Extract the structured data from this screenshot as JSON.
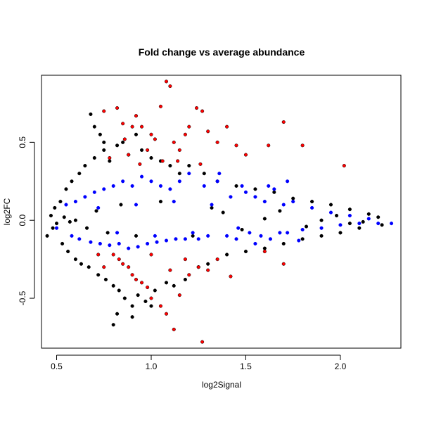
{
  "chart_data": {
    "type": "scatter",
    "title": "Fold change vs average abundance",
    "xlabel": "log2Signal",
    "ylabel": "log2FC",
    "xlim": [
      0.42,
      2.32
    ],
    "ylim": [
      -0.82,
      0.93
    ],
    "x_ticks": [
      0.5,
      1.0,
      1.5,
      2.0
    ],
    "x_tick_labels": [
      "0.5",
      "1.0",
      "1.5",
      "2.0"
    ],
    "y_ticks": [
      -0.5,
      0.0,
      0.5
    ],
    "y_tick_labels": [
      "-0.5",
      "0.0",
      "0.5"
    ],
    "grid": false,
    "legend": "none",
    "colors": {
      "black": "#000000",
      "blue": "#0000ff",
      "red": "#ff0000"
    },
    "series_black": [
      [
        0.45,
        -0.1
      ],
      [
        0.47,
        0.03
      ],
      [
        0.48,
        -0.05
      ],
      [
        0.49,
        0.08
      ],
      [
        0.5,
        -0.02
      ],
      [
        0.52,
        0.12
      ],
      [
        0.53,
        -0.15
      ],
      [
        0.55,
        0.2
      ],
      [
        0.56,
        -0.2
      ],
      [
        0.58,
        0.25
      ],
      [
        0.6,
        -0.25
      ],
      [
        0.62,
        0.3
      ],
      [
        0.63,
        -0.28
      ],
      [
        0.65,
        0.35
      ],
      [
        0.67,
        -0.3
      ],
      [
        0.7,
        0.4
      ],
      [
        0.72,
        -0.35
      ],
      [
        0.75,
        0.45
      ],
      [
        0.76,
        -0.38
      ],
      [
        0.78,
        0.38
      ],
      [
        0.8,
        -0.42
      ],
      [
        0.82,
        0.48
      ],
      [
        0.83,
        -0.45
      ],
      [
        0.85,
        0.5
      ],
      [
        0.86,
        -0.5
      ],
      [
        0.88,
        0.42
      ],
      [
        0.9,
        -0.55
      ],
      [
        0.92,
        0.55
      ],
      [
        0.93,
        -0.48
      ],
      [
        0.95,
        0.45
      ],
      [
        0.97,
        -0.52
      ],
      [
        1.0,
        0.4
      ],
      [
        1.02,
        -0.45
      ],
      [
        1.05,
        0.38
      ],
      [
        1.08,
        -0.4
      ],
      [
        1.1,
        0.35
      ],
      [
        1.12,
        -0.42
      ],
      [
        1.15,
        0.3
      ],
      [
        1.18,
        -0.38
      ],
      [
        1.2,
        0.35
      ],
      [
        1.25,
        -0.3
      ],
      [
        1.28,
        0.3
      ],
      [
        1.3,
        -0.28
      ],
      [
        1.35,
        0.25
      ],
      [
        1.4,
        -0.22
      ],
      [
        1.45,
        0.22
      ],
      [
        1.5,
        -0.2
      ],
      [
        1.55,
        0.2
      ],
      [
        1.6,
        -0.18
      ],
      [
        1.65,
        0.18
      ],
      [
        1.7,
        -0.15
      ],
      [
        1.75,
        0.14
      ],
      [
        1.8,
        -0.12
      ],
      [
        1.85,
        0.12
      ],
      [
        1.9,
        -0.1
      ],
      [
        1.95,
        0.1
      ],
      [
        2.0,
        -0.08
      ],
      [
        2.05,
        0.07
      ],
      [
        2.1,
        -0.05
      ],
      [
        2.15,
        0.04
      ],
      [
        2.2,
        0.02
      ],
      [
        2.22,
        -0.03
      ],
      [
        0.68,
        0.68
      ],
      [
        0.7,
        0.6
      ],
      [
        0.73,
        0.55
      ],
      [
        0.8,
        -0.67
      ],
      [
        0.82,
        -0.6
      ],
      [
        0.9,
        -0.62
      ],
      [
        1.0,
        -0.55
      ],
      [
        0.75,
        0.5
      ],
      [
        1.38,
        0.05
      ],
      [
        1.6,
        0.01
      ],
      [
        1.9,
        0.0
      ],
      [
        2.05,
        -0.02
      ],
      [
        0.6,
        0.0
      ],
      [
        0.66,
        -0.05
      ],
      [
        0.71,
        0.06
      ],
      [
        0.77,
        -0.08
      ],
      [
        0.84,
        0.1
      ],
      [
        0.92,
        -0.1
      ],
      [
        1.05,
        0.12
      ],
      [
        1.22,
        -0.1
      ],
      [
        1.32,
        0.08
      ],
      [
        1.48,
        -0.06
      ],
      [
        1.68,
        0.06
      ],
      [
        1.82,
        -0.04
      ],
      [
        1.98,
        0.03
      ],
      [
        2.12,
        -0.01
      ],
      [
        0.54,
        0.02
      ],
      [
        0.57,
        -0.01
      ]
    ],
    "series_blue": [
      [
        0.5,
        -0.05
      ],
      [
        0.55,
        0.1
      ],
      [
        0.58,
        -0.1
      ],
      [
        0.6,
        0.12
      ],
      [
        0.62,
        -0.12
      ],
      [
        0.65,
        0.15
      ],
      [
        0.68,
        -0.14
      ],
      [
        0.7,
        0.18
      ],
      [
        0.73,
        -0.15
      ],
      [
        0.75,
        0.2
      ],
      [
        0.78,
        -0.16
      ],
      [
        0.8,
        0.22
      ],
      [
        0.83,
        -0.15
      ],
      [
        0.85,
        0.25
      ],
      [
        0.88,
        -0.18
      ],
      [
        0.9,
        0.22
      ],
      [
        0.93,
        -0.17
      ],
      [
        0.95,
        0.28
      ],
      [
        0.98,
        -0.15
      ],
      [
        1.0,
        0.25
      ],
      [
        1.03,
        -0.14
      ],
      [
        1.05,
        0.22
      ],
      [
        1.08,
        -0.13
      ],
      [
        1.1,
        0.2
      ],
      [
        1.13,
        -0.12
      ],
      [
        1.15,
        0.25
      ],
      [
        1.18,
        -0.12
      ],
      [
        1.2,
        0.3
      ],
      [
        1.25,
        -0.12
      ],
      [
        1.28,
        0.22
      ],
      [
        1.3,
        -0.1
      ],
      [
        1.35,
        0.25
      ],
      [
        1.4,
        -0.1
      ],
      [
        1.42,
        0.15
      ],
      [
        1.45,
        -0.12
      ],
      [
        1.5,
        0.18
      ],
      [
        1.52,
        -0.08
      ],
      [
        1.55,
        0.15
      ],
      [
        1.58,
        -0.1
      ],
      [
        1.6,
        0.12
      ],
      [
        1.63,
        -0.12
      ],
      [
        1.65,
        0.2
      ],
      [
        1.68,
        -0.08
      ],
      [
        1.7,
        0.1
      ],
      [
        1.72,
        -0.08
      ],
      [
        1.75,
        0.12
      ],
      [
        1.8,
        -0.06
      ],
      [
        1.85,
        0.08
      ],
      [
        1.9,
        -0.05
      ],
      [
        1.95,
        0.05
      ],
      [
        2.0,
        -0.03
      ],
      [
        2.05,
        0.03
      ],
      [
        2.1,
        -0.02
      ],
      [
        2.15,
        0.01
      ],
      [
        2.2,
        -0.02
      ],
      [
        2.27,
        -0.02
      ],
      [
        1.72,
        0.25
      ],
      [
        1.78,
        -0.13
      ],
      [
        1.62,
        0.22
      ],
      [
        1.55,
        -0.15
      ],
      [
        0.72,
        0.08
      ],
      [
        0.82,
        -0.08
      ],
      [
        0.92,
        0.1
      ],
      [
        1.02,
        -0.1
      ],
      [
        1.12,
        0.12
      ],
      [
        1.22,
        -0.08
      ],
      [
        1.32,
        0.1
      ],
      [
        1.46,
        -0.05
      ],
      [
        1.36,
        0.3
      ],
      [
        1.48,
        0.22
      ]
    ],
    "series_red": [
      [
        0.75,
        0.7
      ],
      [
        0.82,
        0.72
      ],
      [
        0.85,
        0.62
      ],
      [
        0.9,
        0.6
      ],
      [
        0.92,
        0.67
      ],
      [
        0.95,
        0.6
      ],
      [
        1.0,
        0.55
      ],
      [
        1.02,
        0.52
      ],
      [
        1.05,
        0.73
      ],
      [
        1.08,
        0.89
      ],
      [
        1.1,
        0.86
      ],
      [
        1.12,
        0.5
      ],
      [
        1.15,
        0.45
      ],
      [
        1.18,
        0.55
      ],
      [
        1.2,
        0.6
      ],
      [
        1.24,
        0.72
      ],
      [
        1.27,
        0.7
      ],
      [
        1.3,
        0.57
      ],
      [
        1.35,
        0.5
      ],
      [
        1.4,
        0.6
      ],
      [
        1.45,
        0.48
      ],
      [
        1.5,
        0.42
      ],
      [
        1.62,
        0.48
      ],
      [
        1.7,
        0.63
      ],
      [
        1.8,
        0.48
      ],
      [
        2.02,
        0.35
      ],
      [
        0.78,
        0.4
      ],
      [
        0.88,
        0.42
      ],
      [
        0.98,
        0.45
      ],
      [
        1.06,
        0.38
      ],
      [
        0.8,
        -0.22
      ],
      [
        0.83,
        -0.25
      ],
      [
        0.85,
        -0.28
      ],
      [
        0.88,
        -0.3
      ],
      [
        0.9,
        -0.35
      ],
      [
        0.92,
        -0.38
      ],
      [
        0.95,
        -0.4
      ],
      [
        0.98,
        -0.43
      ],
      [
        1.0,
        -0.5
      ],
      [
        1.05,
        -0.55
      ],
      [
        1.08,
        -0.6
      ],
      [
        1.12,
        -0.7
      ],
      [
        1.15,
        -0.48
      ],
      [
        1.2,
        -0.35
      ],
      [
        1.25,
        -0.3
      ],
      [
        1.27,
        -0.78
      ],
      [
        1.3,
        -0.32
      ],
      [
        1.35,
        -0.25
      ],
      [
        1.42,
        -0.36
      ],
      [
        1.6,
        -0.2
      ],
      [
        1.7,
        -0.28
      ],
      [
        0.72,
        -0.22
      ],
      [
        0.75,
        -0.3
      ],
      [
        1.0,
        -0.22
      ],
      [
        1.1,
        -0.32
      ],
      [
        1.18,
        -0.25
      ],
      [
        0.86,
        0.52
      ],
      [
        0.94,
        0.36
      ],
      [
        1.14,
        0.38
      ],
      [
        1.26,
        0.36
      ]
    ]
  }
}
